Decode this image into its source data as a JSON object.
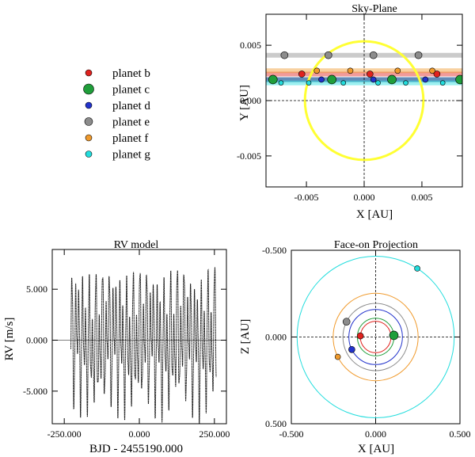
{
  "chart_data": [
    {
      "id": "sky",
      "type": "scatter",
      "title": "Sky-Plane",
      "xlabel": "X [AU]",
      "ylabel": "Y [AU]",
      "xlim": [
        -0.0085,
        0.0085
      ],
      "ylim": [
        -0.0078,
        0.0078
      ],
      "xticks": [
        -0.005,
        0.0,
        0.005
      ],
      "xtick_labels": [
        "-0.005",
        "0.000",
        "0.005"
      ],
      "yticks": [
        -0.005,
        0.0,
        0.005
      ],
      "ytick_labels": [
        "-0.005",
        "0.000",
        "0.005"
      ],
      "star": {
        "x": 0.0,
        "y": 0.0,
        "radius": 0.00513,
        "color": "#ffff33"
      },
      "series": [
        {
          "name": "planet b",
          "color": "#e0221e",
          "band_y": 0.0024,
          "points": [
            [
              -0.0054,
              0.0024
            ],
            [
              0.0005,
              0.0024
            ],
            [
              0.0063,
              0.0024
            ]
          ]
        },
        {
          "name": "planet c",
          "color": "#1f9e3a",
          "band_y": 0.0019,
          "points": [
            [
              -0.0079,
              0.0019
            ],
            [
              -0.0028,
              0.0019
            ],
            [
              0.0024,
              0.0019
            ],
            [
              0.0083,
              0.0019
            ]
          ]
        },
        {
          "name": "planet d",
          "color": "#2233cc",
          "band_y": 0.0019,
          "points": [
            [
              -0.0037,
              0.0019
            ],
            [
              0.0008,
              0.0019
            ],
            [
              0.0053,
              0.0019
            ]
          ]
        },
        {
          "name": "planet e",
          "color": "#8c8c8c",
          "band_y": 0.0041,
          "points": [
            [
              -0.0069,
              0.0041
            ],
            [
              -0.0031,
              0.0041
            ],
            [
              0.0008,
              0.0041
            ],
            [
              0.0047,
              0.0041
            ]
          ]
        },
        {
          "name": "planet f",
          "color": "#f09a2c",
          "band_y": 0.0027,
          "points": [
            [
              -0.0041,
              0.0027
            ],
            [
              -0.0012,
              0.0027
            ],
            [
              0.0029,
              0.0027
            ],
            [
              0.0059,
              0.0027
            ]
          ]
        },
        {
          "name": "planet g",
          "color": "#22dddd",
          "band_y": 0.0016,
          "points": [
            [
              -0.0072,
              0.0016
            ],
            [
              -0.0048,
              0.0016
            ],
            [
              -0.0018,
              0.0016
            ],
            [
              0.0012,
              0.0016
            ],
            [
              0.0036,
              0.0016
            ],
            [
              0.0068,
              0.0016
            ]
          ]
        }
      ]
    },
    {
      "id": "rv",
      "type": "line",
      "title": "RV model",
      "xlabel": "BJD - 2455190.000",
      "ylabel": "RV [m/s]",
      "xlim": [
        -290,
        290
      ],
      "ylim": [
        -8200,
        8900
      ],
      "xticks": [
        -250,
        0,
        250
      ],
      "xtick_labels": [
        "-250.000",
        "0.000",
        "250.000"
      ],
      "yticks": [
        -5000,
        0,
        5000
      ],
      "ytick_labels": [
        "-5.000",
        "0.000",
        "5.000"
      ],
      "x_range": [
        -228,
        256
      ],
      "components": [
        {
          "amplitude": 4300,
          "period": 11.3,
          "phase": 0.3
        },
        {
          "amplitude": 2600,
          "period": 20.8,
          "phase": 1.2
        },
        {
          "amplitude": 900,
          "period": 4.6,
          "phase": 2.1
        },
        {
          "amplitude": 600,
          "period": 122.0,
          "phase": 0.5
        }
      ]
    },
    {
      "id": "faceon",
      "type": "scatter",
      "title": "Face-on Projection",
      "xlabel": "X [AU]",
      "ylabel": "Z [AU]",
      "xlim": [
        -0.5,
        0.5
      ],
      "ylim": [
        -0.5,
        0.5
      ],
      "y_inverted": true,
      "xticks": [
        -0.5,
        0.0,
        0.5
      ],
      "xtick_labels": [
        "-0.500",
        "0.000",
        "0.500"
      ],
      "yticks": [
        -0.5,
        0.0,
        0.5
      ],
      "ytick_labels": [
        "-0.500",
        "0.000",
        "0.500"
      ],
      "orbits": [
        {
          "name": "planet b",
          "color": "#e0221e",
          "r": 0.0909,
          "angle_deg": 184,
          "point_r": 0.0909
        },
        {
          "name": "planet c",
          "color": "#1f9e3a",
          "r": 0.1084,
          "angle_deg": 355,
          "point_r": 0.1084
        },
        {
          "name": "planet d",
          "color": "#2233cc",
          "r": 0.1588,
          "angle_deg": 153,
          "point_r": 0.1588
        },
        {
          "name": "planet e",
          "color": "#8c8c8c",
          "r": 0.194,
          "angle_deg": 207,
          "point_r": 0.194
        },
        {
          "name": "planet f",
          "color": "#f09a2c",
          "r": 0.252,
          "angle_deg": 153,
          "point_r": 0.252
        },
        {
          "name": "planet g",
          "color": "#22dddd",
          "r": 0.466,
          "angle_deg": 302,
          "point_r": 0.466
        }
      ]
    }
  ],
  "legend": [
    {
      "label": "planet b",
      "color": "#e0221e",
      "size": "small"
    },
    {
      "label": "planet c",
      "color": "#1f9e3a",
      "size": "large"
    },
    {
      "label": "planet d",
      "color": "#2233cc",
      "size": "small"
    },
    {
      "label": "planet e",
      "color": "#8c8c8c",
      "size": "medium"
    },
    {
      "label": "planet f",
      "color": "#f09a2c",
      "size": "small"
    },
    {
      "label": "planet g",
      "color": "#22dddd",
      "size": "small"
    }
  ]
}
